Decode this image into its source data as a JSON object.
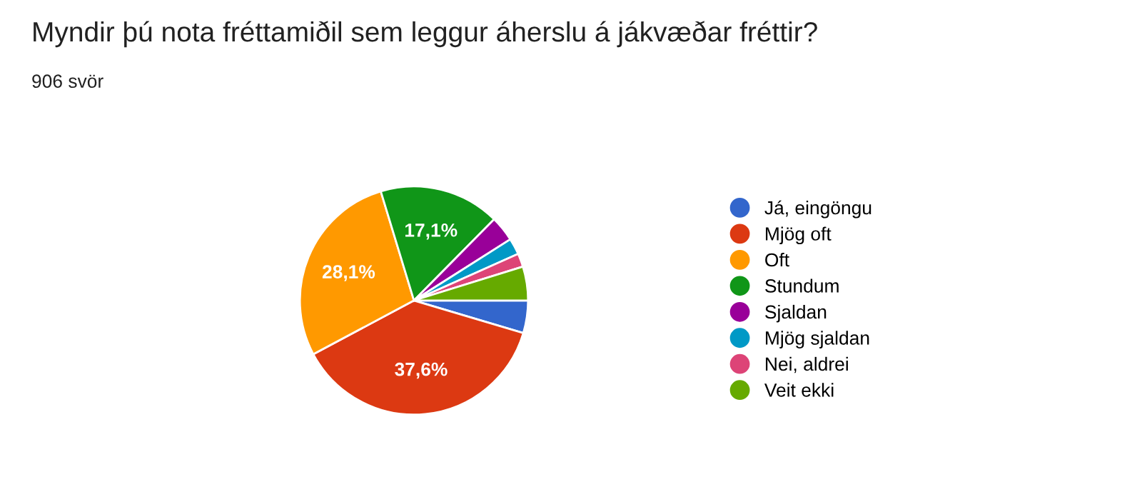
{
  "chart_data": {
    "type": "pie",
    "title": "Myndir þú nota fréttamiðil sem leggur áherslu á jákvæðar fréttir?",
    "subtitle": "906 svör",
    "categories": [
      "Já, eingöngu",
      "Mjög oft",
      "Oft",
      "Stundum",
      "Sjaldan",
      "Mjög sjaldan",
      "Nei, aldrei",
      "Veit ekki"
    ],
    "values": [
      4.6,
      37.6,
      28.1,
      17.1,
      3.6,
      2.3,
      1.9,
      4.8
    ],
    "value_labels": [
      null,
      "37,6%",
      "28,1%",
      "17,1%",
      null,
      null,
      null,
      null
    ],
    "colors": [
      "#3366cc",
      "#dc3912",
      "#ff9900",
      "#109618",
      "#990099",
      "#0099c6",
      "#dd4477",
      "#66aa00"
    ],
    "legend": "right"
  }
}
